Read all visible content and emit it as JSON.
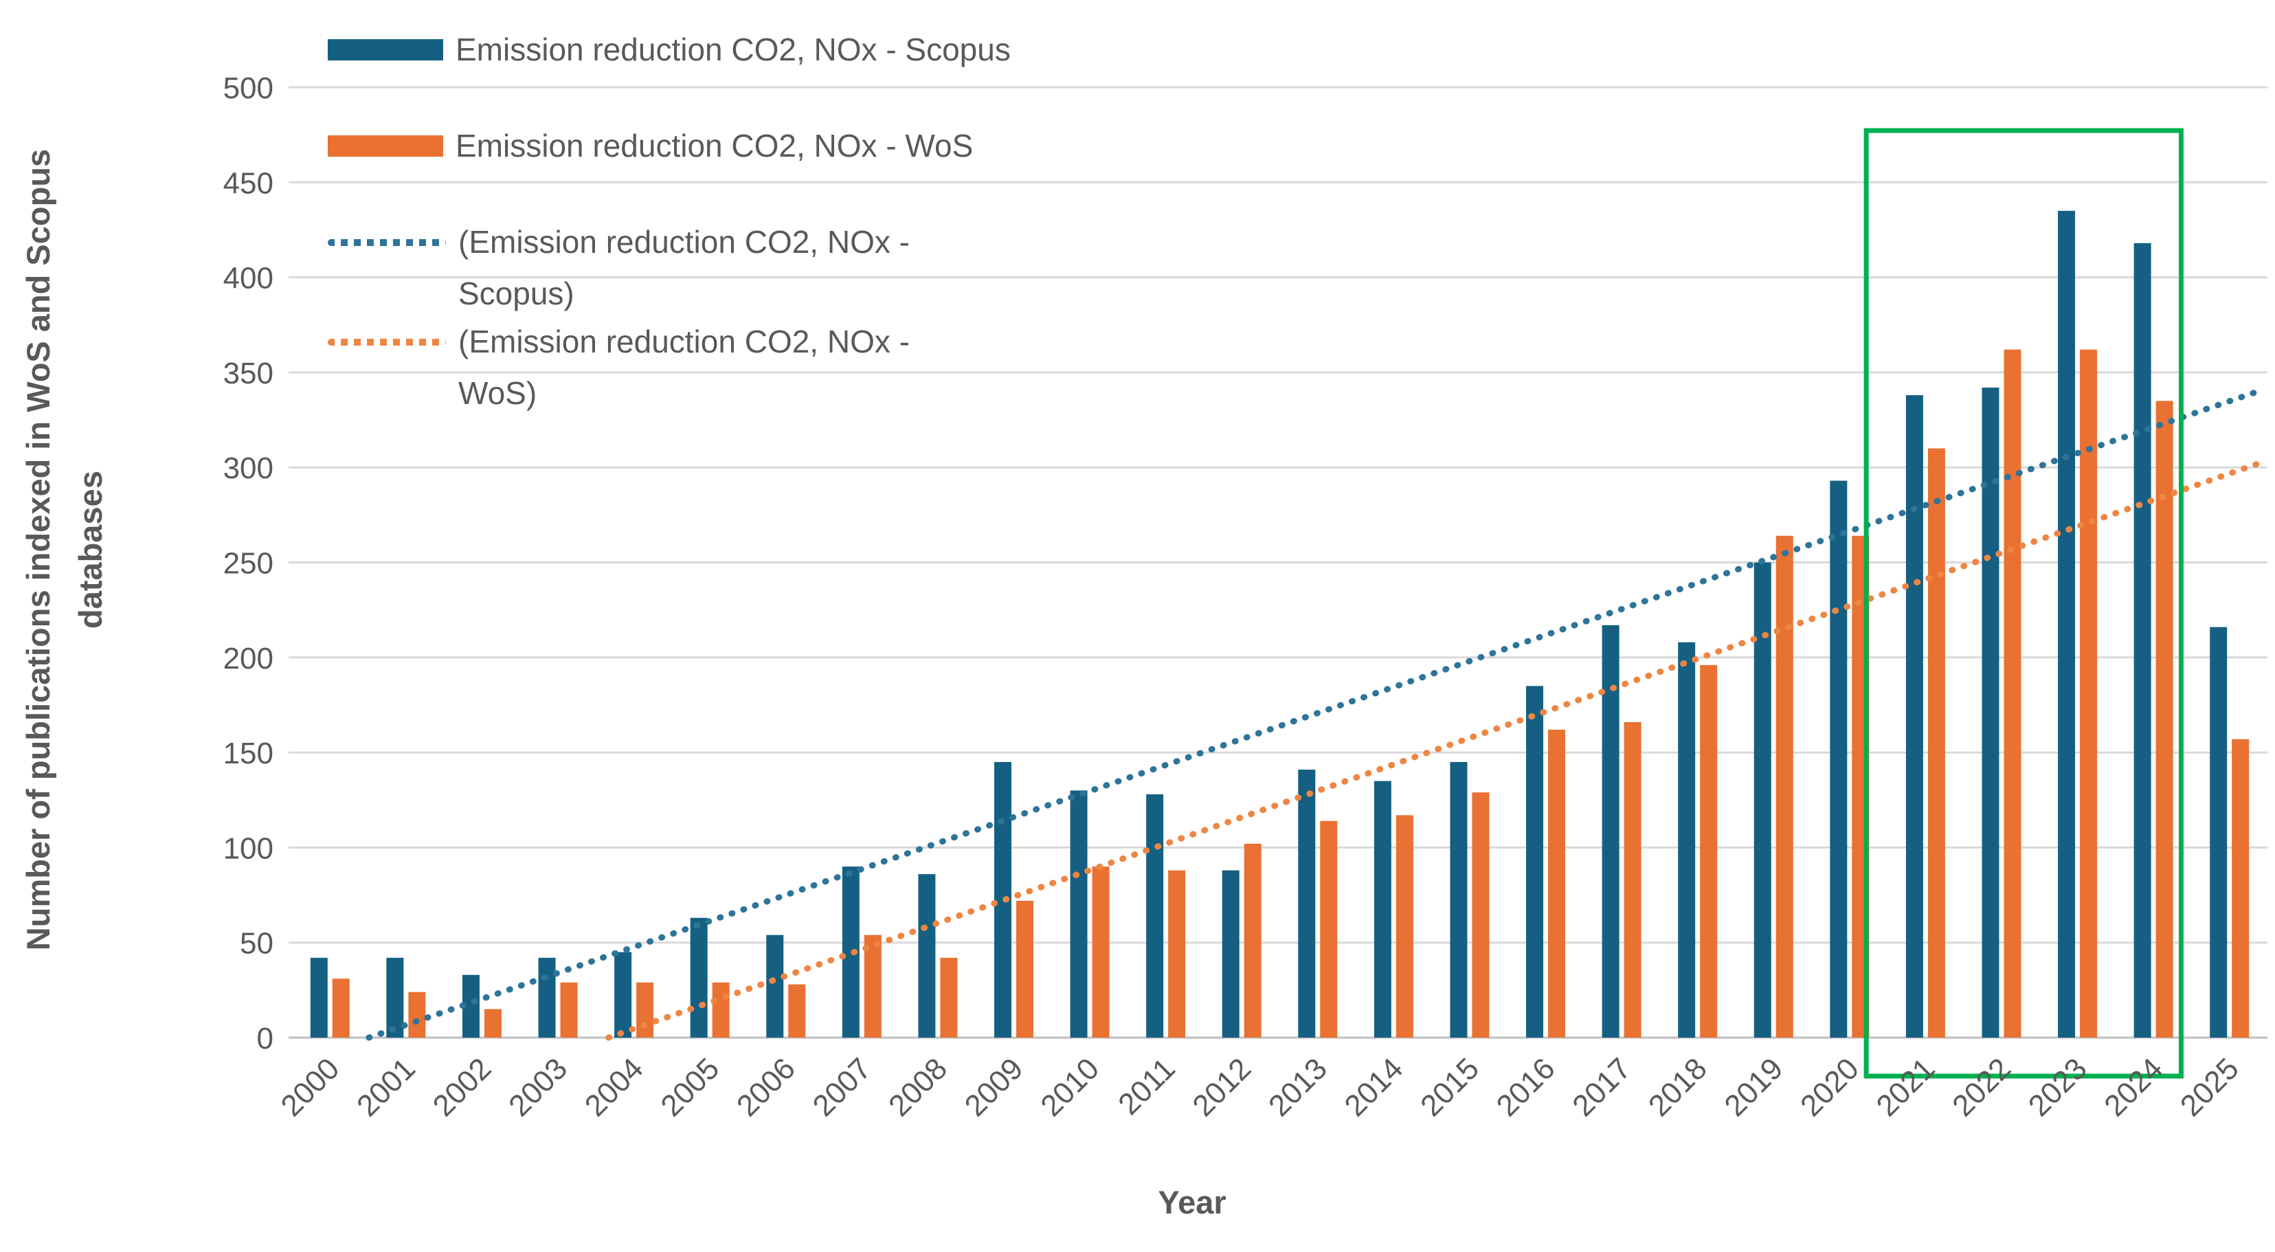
{
  "colors": {
    "scopus_bar": "#156082",
    "wos_bar": "#E97132",
    "scopus_trend": "#2E7499",
    "wos_trend": "#EE8643",
    "gridline": "#D9D9D9",
    "axis_line": "#BFBFBF",
    "text": "#595959",
    "highlight": "#00B050",
    "background": "#FFFFFF"
  },
  "legend": {
    "items": [
      {
        "label": "Emission reduction CO2, NOx - Scopus",
        "swatch": "bar",
        "color_key": "scopus_bar"
      },
      {
        "label": "Emission reduction CO2, NOx - WoS",
        "swatch": "bar",
        "color_key": "wos_bar"
      },
      {
        "label": "(Emission reduction CO2, NOx -\nScopus)",
        "swatch": "dotted",
        "color_key": "scopus_trend"
      },
      {
        "label": "(Emission reduction CO2, NOx -\nWoS)",
        "swatch": "dotted",
        "color_key": "wos_trend"
      }
    ]
  },
  "axes": {
    "y_title": "Number of publications indexed in WoS and Scopus\ndatabases",
    "x_title": "Year"
  },
  "chart_data": {
    "type": "bar",
    "title": "",
    "categories": [
      "2000",
      "2001",
      "2002",
      "2003",
      "2004",
      "2005",
      "2006",
      "2007",
      "2008",
      "2009",
      "2010",
      "2011",
      "2012",
      "2013",
      "2014",
      "2015",
      "2016",
      "2017",
      "2018",
      "2019",
      "2020",
      "2021",
      "2022",
      "2023",
      "2024",
      "2025"
    ],
    "series": [
      {
        "name": "Emission reduction CO2, NOx - Scopus",
        "color_key": "scopus_bar",
        "values": [
          42,
          42,
          33,
          42,
          45,
          63,
          54,
          90,
          86,
          145,
          130,
          128,
          88,
          141,
          135,
          145,
          185,
          217,
          208,
          250,
          293,
          338,
          342,
          435,
          418,
          216
        ]
      },
      {
        "name": "Emission reduction CO2, NOx - WoS",
        "color_key": "wos_bar",
        "values": [
          31,
          24,
          15,
          29,
          29,
          29,
          28,
          54,
          42,
          72,
          90,
          88,
          102,
          114,
          117,
          129,
          162,
          166,
          196,
          264,
          264,
          310,
          362,
          362,
          335,
          157
        ]
      }
    ],
    "trendlines": [
      {
        "name": "(Emission reduction CO2, NOx - Scopus)",
        "color_key": "scopus_trend",
        "start": {
          "year_index": 0,
          "value": -7
        },
        "end": {
          "year_index": 25.45,
          "value": 341
        }
      },
      {
        "name": "(Emission reduction CO2, NOx - WoS)",
        "color_key": "wos_trend",
        "start": {
          "year_index": 0,
          "value": -51
        },
        "end": {
          "year_index": 25.45,
          "value": 303
        }
      }
    ],
    "highlight_box": {
      "from_category": "2021",
      "to_category": "2024",
      "color_key": "highlight"
    },
    "ylabel": "Number of publications indexed in WoS and Scopus databases",
    "xlabel": "Year",
    "ylim": [
      0,
      500
    ],
    "ytick_step": 50,
    "grid": true,
    "legend_position": "top-left"
  }
}
